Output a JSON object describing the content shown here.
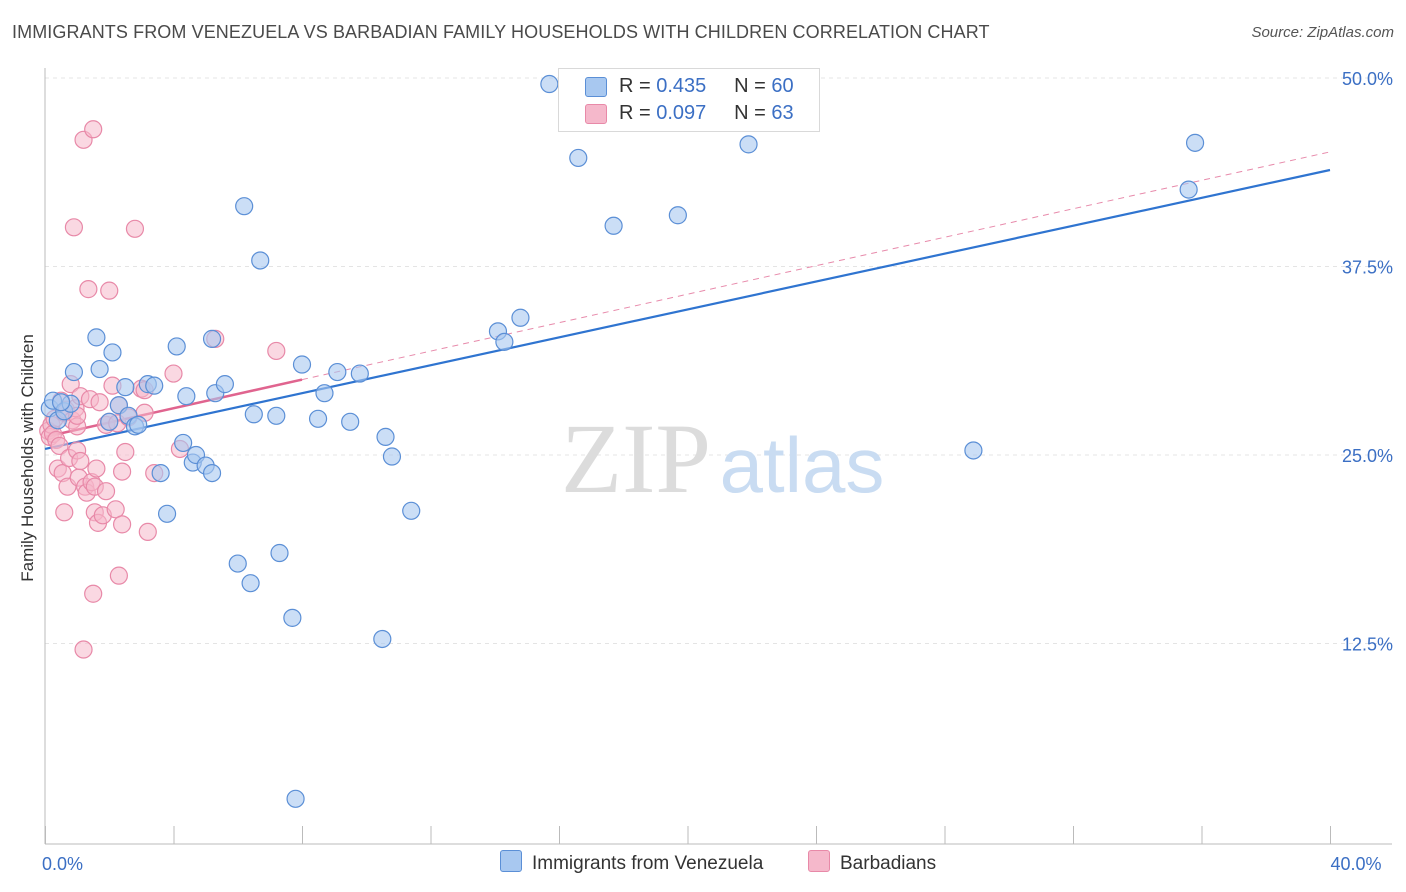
{
  "title": "IMMIGRANTS FROM VENEZUELA VS BARBADIAN FAMILY HOUSEHOLDS WITH CHILDREN CORRELATION CHART",
  "source": "Source: ZipAtlas.com",
  "watermark": {
    "zip": "ZIP",
    "atlas": "atlas"
  },
  "legend": {
    "series1": {
      "r_label": "R = ",
      "r_value": "0.435",
      "n_label": "N = ",
      "n_value": "60"
    },
    "series2": {
      "r_label": "R = ",
      "r_value": "0.097",
      "n_label": "N = ",
      "n_value": "63"
    }
  },
  "bottom_legend": {
    "series1": "Immigrants from Venezuela",
    "series2": "Barbadians"
  },
  "colors": {
    "blue_fill": "#a8c8f0",
    "blue_stroke": "#5b8fd6",
    "blue_line": "#2f74d0",
    "pink_fill": "#f5b8cb",
    "pink_stroke": "#e889a8",
    "pink_line": "#e0648f",
    "axis_text": "#3b6fc4",
    "grid": "#e4e4e4"
  },
  "chart_data": {
    "type": "scatter",
    "title": "IMMIGRANTS FROM VENEZUELA VS BARBADIAN FAMILY HOUSEHOLDS WITH CHILDREN CORRELATION CHART",
    "xlabel": "",
    "ylabel": "Family Households with Children",
    "xlim": [
      0,
      40
    ],
    "ylim": [
      0,
      50
    ],
    "x_tick_labels": [
      {
        "value": 0,
        "label": "0.0%"
      },
      {
        "value": 40,
        "label": "40.0%"
      }
    ],
    "y_tick_labels": [
      {
        "value": 12.5,
        "label": "12.5%"
      },
      {
        "value": 25,
        "label": "25.0%"
      },
      {
        "value": 37.5,
        "label": "37.5%"
      },
      {
        "value": 50,
        "label": "50.0%"
      }
    ],
    "x_minor_ticks": [
      0,
      4,
      8,
      12,
      16,
      20,
      24,
      28,
      32,
      36,
      40
    ],
    "series": [
      {
        "name": "Immigrants from Venezuela",
        "R": 0.435,
        "N": 60,
        "trend": {
          "x": [
            0,
            40
          ],
          "y": [
            25.4,
            43.9
          ]
        },
        "points": [
          [
            0.15,
            28.1
          ],
          [
            0.25,
            28.6
          ],
          [
            0.4,
            27.3
          ],
          [
            0.6,
            27.9
          ],
          [
            0.8,
            28.4
          ],
          [
            0.9,
            30.5
          ],
          [
            1.6,
            32.8
          ],
          [
            1.7,
            30.7
          ],
          [
            2.1,
            31.8
          ],
          [
            2.0,
            27.2
          ],
          [
            2.3,
            28.3
          ],
          [
            2.5,
            29.5
          ],
          [
            2.6,
            27.6
          ],
          [
            2.8,
            26.9
          ],
          [
            2.9,
            27.0
          ],
          [
            3.2,
            29.7
          ],
          [
            3.4,
            29.6
          ],
          [
            3.6,
            23.8
          ],
          [
            3.8,
            21.1
          ],
          [
            4.1,
            32.2
          ],
          [
            4.3,
            25.8
          ],
          [
            4.4,
            28.9
          ],
          [
            4.6,
            24.5
          ],
          [
            4.7,
            25.0
          ],
          [
            5.0,
            24.3
          ],
          [
            5.2,
            23.8
          ],
          [
            5.3,
            29.1
          ],
          [
            5.6,
            29.7
          ],
          [
            5.2,
            32.7
          ],
          [
            6.0,
            17.8
          ],
          [
            6.2,
            41.5
          ],
          [
            6.4,
            16.5
          ],
          [
            6.5,
            27.7
          ],
          [
            6.7,
            37.9
          ],
          [
            7.2,
            27.6
          ],
          [
            7.3,
            18.5
          ],
          [
            7.7,
            14.2
          ],
          [
            7.8,
            2.2
          ],
          [
            8.0,
            31.0
          ],
          [
            8.5,
            27.4
          ],
          [
            8.7,
            29.1
          ],
          [
            9.1,
            30.5
          ],
          [
            9.5,
            27.2
          ],
          [
            9.8,
            30.4
          ],
          [
            10.5,
            12.8
          ],
          [
            10.6,
            26.2
          ],
          [
            10.8,
            24.9
          ],
          [
            11.4,
            21.3
          ],
          [
            14.1,
            33.2
          ],
          [
            14.3,
            32.5
          ],
          [
            14.8,
            34.1
          ],
          [
            15.7,
            49.6
          ],
          [
            16.6,
            44.7
          ],
          [
            17.7,
            40.2
          ],
          [
            19.7,
            40.9
          ],
          [
            21.9,
            45.6
          ],
          [
            28.9,
            25.3
          ],
          [
            35.8,
            45.7
          ],
          [
            35.6,
            42.6
          ],
          [
            0.5,
            28.5
          ]
        ]
      },
      {
        "name": "Barbadians",
        "R": 0.097,
        "N": 63,
        "trend": {
          "x": [
            0,
            8
          ],
          "y": [
            26.2,
            30.0
          ]
        },
        "trend_dashed": {
          "x": [
            8,
            40
          ],
          "y": [
            30.0,
            45.1
          ]
        },
        "points": [
          [
            0.1,
            26.6
          ],
          [
            0.15,
            26.2
          ],
          [
            0.2,
            27.0
          ],
          [
            0.25,
            26.4
          ],
          [
            0.3,
            27.4
          ],
          [
            0.35,
            26.0
          ],
          [
            0.4,
            24.1
          ],
          [
            0.45,
            25.6
          ],
          [
            0.5,
            28.6
          ],
          [
            0.55,
            23.8
          ],
          [
            0.6,
            27.8
          ],
          [
            0.6,
            21.2
          ],
          [
            0.65,
            28.0
          ],
          [
            0.7,
            22.9
          ],
          [
            0.75,
            24.8
          ],
          [
            0.8,
            29.7
          ],
          [
            0.85,
            27.3
          ],
          [
            0.9,
            40.1
          ],
          [
            0.95,
            28.1
          ],
          [
            1.0,
            25.3
          ],
          [
            1.0,
            26.9
          ],
          [
            1.05,
            23.5
          ],
          [
            1.1,
            28.9
          ],
          [
            1.1,
            24.6
          ],
          [
            1.2,
            45.9
          ],
          [
            1.2,
            12.1
          ],
          [
            1.25,
            22.9
          ],
          [
            1.3,
            22.5
          ],
          [
            1.35,
            36.0
          ],
          [
            1.4,
            28.7
          ],
          [
            1.45,
            23.2
          ],
          [
            1.5,
            46.6
          ],
          [
            1.5,
            15.8
          ],
          [
            1.55,
            22.9
          ],
          [
            1.55,
            21.2
          ],
          [
            1.6,
            24.1
          ],
          [
            1.65,
            20.5
          ],
          [
            1.7,
            28.5
          ],
          [
            1.8,
            21.0
          ],
          [
            1.9,
            22.6
          ],
          [
            1.9,
            27.0
          ],
          [
            2.0,
            35.9
          ],
          [
            2.0,
            27.2
          ],
          [
            2.1,
            29.6
          ],
          [
            2.2,
            21.4
          ],
          [
            2.25,
            27.1
          ],
          [
            2.3,
            28.3
          ],
          [
            2.4,
            23.9
          ],
          [
            2.4,
            20.4
          ],
          [
            2.5,
            25.2
          ],
          [
            2.6,
            27.5
          ],
          [
            2.8,
            40.0
          ],
          [
            3.0,
            29.4
          ],
          [
            3.1,
            29.3
          ],
          [
            3.1,
            27.8
          ],
          [
            3.2,
            19.9
          ],
          [
            3.4,
            23.8
          ],
          [
            4.0,
            30.4
          ],
          [
            4.2,
            25.4
          ],
          [
            5.3,
            32.7
          ],
          [
            7.2,
            31.9
          ],
          [
            2.3,
            17.0
          ],
          [
            1.0,
            27.6
          ]
        ]
      }
    ]
  }
}
